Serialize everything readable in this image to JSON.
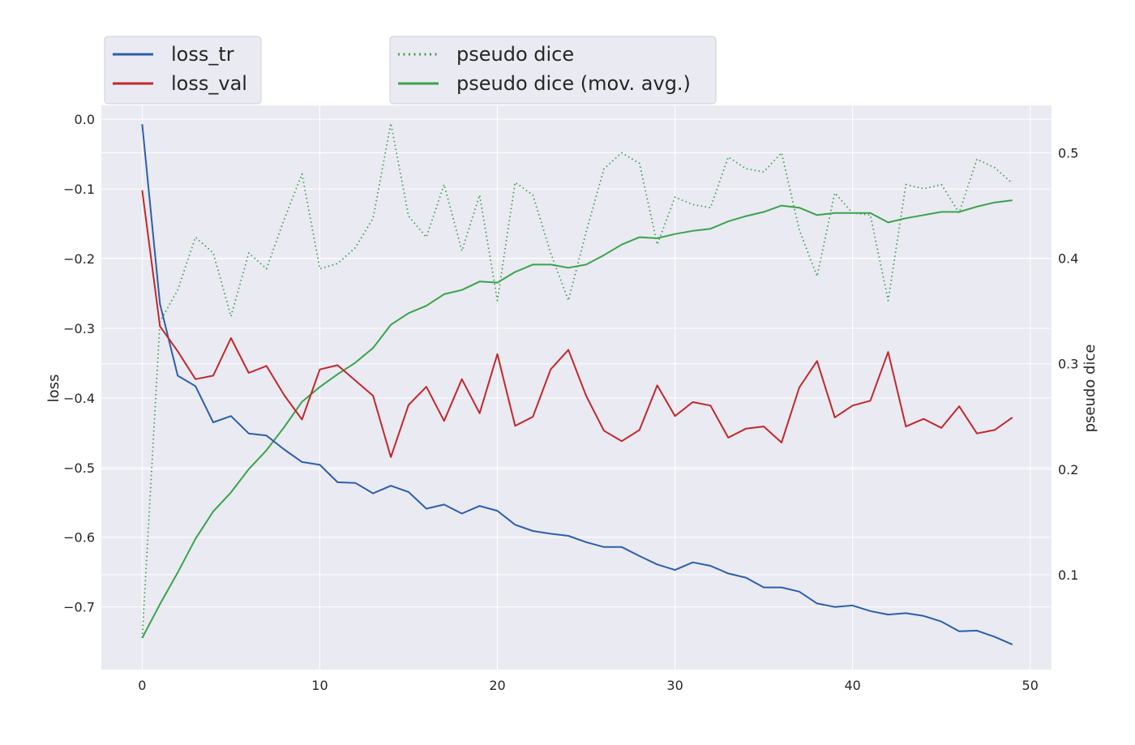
{
  "chart_data": {
    "type": "line",
    "x": [
      0,
      1,
      2,
      3,
      4,
      5,
      6,
      7,
      8,
      9,
      10,
      11,
      12,
      13,
      14,
      15,
      16,
      17,
      18,
      19,
      20,
      21,
      22,
      23,
      24,
      25,
      26,
      27,
      28,
      29,
      30,
      31,
      32,
      33,
      34,
      35,
      36,
      37,
      38,
      39,
      40,
      41,
      42,
      43,
      44,
      45,
      46,
      47,
      48,
      49
    ],
    "xlim": [
      -2.3,
      51.2
    ],
    "xticks": [
      0,
      10,
      20,
      30,
      40,
      50
    ],
    "xtick_labels": [
      "0",
      "10",
      "20",
      "30",
      "40",
      "50"
    ],
    "left_axis": {
      "label": "loss",
      "ylim": [
        -0.79,
        0.02
      ],
      "ticks": [
        0.0,
        -0.1,
        -0.2,
        -0.3,
        -0.4,
        -0.5,
        -0.6,
        -0.7
      ],
      "tick_labels": [
        "0.0",
        "−0.1",
        "−0.2",
        "−0.3",
        "−0.4",
        "−0.5",
        "−0.6",
        "−0.7"
      ]
    },
    "right_axis": {
      "label": "pseudo dice",
      "ylim": [
        0.01,
        0.545
      ],
      "ticks": [
        0.1,
        0.2,
        0.3,
        0.4,
        0.5
      ],
      "tick_labels": [
        "0.1",
        "0.2",
        "0.3",
        "0.4",
        "0.5"
      ]
    },
    "grid": true,
    "series": [
      {
        "name": "loss_tr",
        "axis": "left",
        "color": "#2c5fa8",
        "style": "solid",
        "values": [
          -0.007,
          -0.265,
          -0.368,
          -0.383,
          -0.435,
          -0.426,
          -0.451,
          -0.454,
          -0.474,
          -0.492,
          -0.496,
          -0.521,
          -0.522,
          -0.537,
          -0.526,
          -0.535,
          -0.559,
          -0.553,
          -0.566,
          -0.555,
          -0.562,
          -0.582,
          -0.591,
          -0.595,
          -0.598,
          -0.607,
          -0.614,
          -0.614,
          -0.627,
          -0.639,
          -0.647,
          -0.636,
          -0.641,
          -0.652,
          -0.658,
          -0.672,
          -0.672,
          -0.678,
          -0.695,
          -0.7,
          -0.698,
          -0.706,
          -0.711,
          -0.709,
          -0.713,
          -0.721,
          -0.735,
          -0.734,
          -0.743,
          -0.754
        ]
      },
      {
        "name": "loss_val",
        "axis": "left",
        "color": "#c0282b",
        "style": "solid",
        "values": [
          -0.102,
          -0.297,
          -0.333,
          -0.373,
          -0.368,
          -0.314,
          -0.364,
          -0.354,
          -0.396,
          -0.431,
          -0.359,
          -0.353,
          -0.375,
          -0.397,
          -0.485,
          -0.41,
          -0.384,
          -0.433,
          -0.373,
          -0.422,
          -0.337,
          -0.44,
          -0.427,
          -0.359,
          -0.331,
          -0.397,
          -0.447,
          -0.462,
          -0.446,
          -0.382,
          -0.426,
          -0.406,
          -0.411,
          -0.457,
          -0.444,
          -0.441,
          -0.464,
          -0.385,
          -0.347,
          -0.428,
          -0.411,
          -0.404,
          -0.334,
          -0.441,
          -0.43,
          -0.443,
          -0.412,
          -0.451,
          -0.446,
          -0.428
        ]
      },
      {
        "name": "pseudo dice",
        "axis": "right",
        "color": "#39a34a",
        "style": "dotted",
        "values": [
          0.04,
          0.34,
          0.37,
          0.42,
          0.405,
          0.345,
          0.405,
          0.39,
          0.437,
          0.48,
          0.39,
          0.395,
          0.41,
          0.438,
          0.528,
          0.44,
          0.42,
          0.47,
          0.407,
          0.46,
          0.36,
          0.472,
          0.46,
          0.405,
          0.36,
          0.425,
          0.485,
          0.5,
          0.49,
          0.413,
          0.458,
          0.451,
          0.448,
          0.496,
          0.485,
          0.482,
          0.5,
          0.427,
          0.383,
          0.462,
          0.443,
          0.441,
          0.36,
          0.47,
          0.466,
          0.47,
          0.443,
          0.494,
          0.486,
          0.471
        ]
      },
      {
        "name": "pseudo dice (mov. avg.)",
        "axis": "right",
        "color": "#39a34a",
        "style": "solid",
        "values": [
          0.04,
          0.072,
          0.102,
          0.134,
          0.16,
          0.178,
          0.2,
          0.218,
          0.24,
          0.264,
          0.278,
          0.29,
          0.301,
          0.315,
          0.337,
          0.348,
          0.355,
          0.366,
          0.37,
          0.378,
          0.377,
          0.387,
          0.394,
          0.394,
          0.391,
          0.394,
          0.403,
          0.413,
          0.42,
          0.419,
          0.423,
          0.426,
          0.428,
          0.435,
          0.44,
          0.444,
          0.45,
          0.448,
          0.441,
          0.443,
          0.443,
          0.443,
          0.434,
          0.438,
          0.441,
          0.444,
          0.444,
          0.449,
          0.453,
          0.455
        ]
      }
    ],
    "legends": [
      {
        "placement": "top-left",
        "entries": [
          "loss_tr",
          "loss_val"
        ]
      },
      {
        "placement": "top-center",
        "entries": [
          "pseudo dice",
          "pseudo dice (mov. avg.)"
        ]
      }
    ]
  }
}
